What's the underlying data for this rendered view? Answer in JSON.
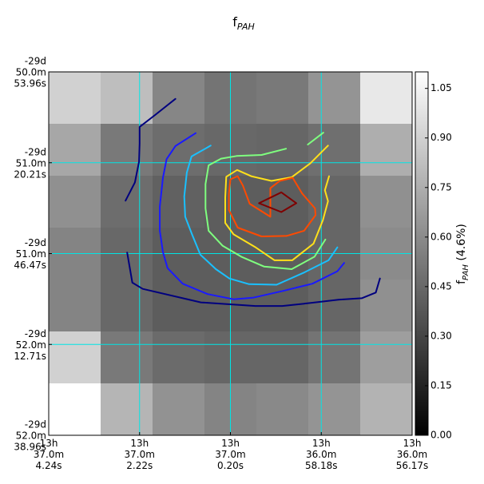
{
  "chart_data": {
    "type": "heatmap",
    "title": "f",
    "title_sub": "PAH",
    "colormap": "gray",
    "vmin": 0.0,
    "vmax": 1.1,
    "grid_rows": 7,
    "grid_cols": 7,
    "values": [
      [
        0.9,
        0.82,
        0.58,
        0.5,
        0.52,
        0.64,
        1.0
      ],
      [
        0.72,
        0.52,
        0.47,
        0.45,
        0.44,
        0.48,
        0.75
      ],
      [
        0.62,
        0.47,
        0.42,
        0.4,
        0.4,
        0.44,
        0.62
      ],
      [
        0.57,
        0.45,
        0.4,
        0.4,
        0.4,
        0.44,
        0.6
      ],
      [
        0.57,
        0.45,
        0.4,
        0.4,
        0.4,
        0.44,
        0.62
      ],
      [
        0.9,
        0.52,
        0.46,
        0.44,
        0.44,
        0.5,
        0.68
      ],
      [
        1.1,
        0.78,
        0.63,
        0.57,
        0.59,
        0.64,
        0.77
      ]
    ],
    "y_ticks": [
      {
        "lines": [
          "-29d",
          "50.0m",
          "53.96s"
        ]
      },
      {
        "lines": [
          "-29d",
          "51.0m",
          "20.21s"
        ]
      },
      {
        "lines": [
          "-29d",
          "51.0m",
          "46.47s"
        ]
      },
      {
        "lines": [
          "-29d",
          "52.0m",
          "12.71s"
        ]
      },
      {
        "lines": [
          "-29d",
          "52.0m",
          "38.96s"
        ]
      }
    ],
    "x_ticks": [
      {
        "lines": [
          "13h",
          "37.0m",
          "4.24s"
        ]
      },
      {
        "lines": [
          "13h",
          "37.0m",
          "2.22s"
        ]
      },
      {
        "lines": [
          "13h",
          "37.0m",
          "0.20s"
        ]
      },
      {
        "lines": [
          "13h",
          "36.0m",
          "58.18s"
        ]
      },
      {
        "lines": [
          "13h",
          "36.0m",
          "56.17s"
        ]
      }
    ],
    "colorbar": {
      "label_prefix": "f",
      "label_sub": "PAH",
      "label_suffix": " (4.6%)",
      "ticks": [
        "0.00",
        "0.15",
        "0.30",
        "0.45",
        "0.60",
        "0.75",
        "0.90",
        "1.05"
      ]
    },
    "grid_color": "#00e5e5",
    "contours": [
      {
        "color": "#00007f",
        "segments": [
          [
            [
              2.44,
              0.52
            ],
            [
              2.05,
              0.83
            ],
            [
              1.75,
              1.06
            ],
            [
              1.75,
              1.38
            ],
            [
              1.74,
              1.73
            ],
            [
              1.66,
              2.13
            ],
            [
              1.48,
              2.48
            ]
          ],
          [
            [
              1.51,
              3.48
            ],
            [
              1.61,
              4.06
            ],
            [
              1.81,
              4.18
            ],
            [
              2.93,
              4.44
            ],
            [
              3.98,
              4.51
            ],
            [
              4.5,
              4.51
            ],
            [
              5.05,
              4.45
            ],
            [
              5.58,
              4.39
            ],
            [
              6.03,
              4.36
            ],
            [
              6.3,
              4.25
            ],
            [
              6.38,
              3.98
            ]
          ]
        ]
      },
      {
        "color": "#1a1aff",
        "segments": [
          [
            [
              2.83,
              1.18
            ],
            [
              2.44,
              1.43
            ],
            [
              2.27,
              1.68
            ],
            [
              2.2,
              2.04
            ],
            [
              2.14,
              2.59
            ],
            [
              2.14,
              3.06
            ],
            [
              2.2,
              3.47
            ],
            [
              2.29,
              3.78
            ],
            [
              2.58,
              4.08
            ],
            [
              3.06,
              4.28
            ],
            [
              3.56,
              4.38
            ],
            [
              3.93,
              4.35
            ],
            [
              4.51,
              4.22
            ],
            [
              5.08,
              4.08
            ],
            [
              5.56,
              3.84
            ],
            [
              5.69,
              3.68
            ]
          ]
        ]
      },
      {
        "color": "#1ac0ff",
        "segments": [
          [
            [
              3.12,
              1.42
            ],
            [
              2.75,
              1.63
            ],
            [
              2.66,
              1.94
            ],
            [
              2.61,
              2.4
            ],
            [
              2.63,
              2.79
            ],
            [
              2.76,
              3.13
            ],
            [
              2.92,
              3.52
            ],
            [
              3.22,
              3.8
            ],
            [
              3.48,
              3.98
            ],
            [
              3.86,
              4.09
            ],
            [
              4.39,
              4.1
            ],
            [
              4.93,
              3.86
            ],
            [
              5.39,
              3.63
            ],
            [
              5.56,
              3.38
            ]
          ]
        ]
      },
      {
        "color": "#7fff7f",
        "segments": [
          [
            [
              4.57,
              1.48
            ],
            [
              4.1,
              1.6
            ],
            [
              3.62,
              1.62
            ],
            [
              3.32,
              1.67
            ],
            [
              3.08,
              1.8
            ],
            [
              3.02,
              2.16
            ],
            [
              3.02,
              2.63
            ],
            [
              3.08,
              3.06
            ],
            [
              3.35,
              3.35
            ],
            [
              3.71,
              3.56
            ],
            [
              4.15,
              3.75
            ],
            [
              4.68,
              3.8
            ],
            [
              5.12,
              3.56
            ],
            [
              5.33,
              3.23
            ]
          ],
          [
            [
              4.99,
              1.4
            ],
            [
              5.29,
              1.17
            ]
          ]
        ]
      },
      {
        "color": "#ffe01a",
        "segments": [
          [
            [
              5.38,
              1.42
            ],
            [
              5.04,
              1.76
            ],
            [
              4.68,
              2.03
            ],
            [
              4.29,
              2.1
            ],
            [
              3.9,
              2.01
            ],
            [
              3.63,
              1.89
            ],
            [
              3.42,
              2.02
            ],
            [
              3.4,
              2.42
            ],
            [
              3.4,
              2.91
            ],
            [
              3.56,
              3.13
            ],
            [
              3.97,
              3.37
            ],
            [
              4.35,
              3.63
            ],
            [
              4.69,
              3.63
            ],
            [
              5.1,
              3.31
            ],
            [
              5.28,
              2.86
            ],
            [
              5.38,
              2.49
            ],
            [
              5.32,
              2.28
            ],
            [
              5.4,
              2.01
            ]
          ]
        ]
      },
      {
        "color": "#ff4a00",
        "segments": [
          [
            [
              4.27,
              2.79
            ],
            [
              3.87,
              2.54
            ],
            [
              3.74,
              2.19
            ],
            [
              3.64,
              2.01
            ],
            [
              3.5,
              2.07
            ],
            [
              3.47,
              2.35
            ],
            [
              3.47,
              2.66
            ],
            [
              3.64,
              3.0
            ],
            [
              4.1,
              3.17
            ],
            [
              4.58,
              3.16
            ],
            [
              4.92,
              3.06
            ],
            [
              5.14,
              2.76
            ],
            [
              5.13,
              2.63
            ],
            [
              4.88,
              2.34
            ],
            [
              4.7,
              2.04
            ],
            [
              4.45,
              2.1
            ],
            [
              4.27,
              2.24
            ],
            [
              4.27,
              2.79
            ]
          ]
        ]
      },
      {
        "color": "#7f0000",
        "segments": [
          [
            [
              4.05,
              2.53
            ],
            [
              4.48,
              2.32
            ],
            [
              4.77,
              2.53
            ],
            [
              4.48,
              2.7
            ],
            [
              4.05,
              2.53
            ]
          ]
        ]
      }
    ]
  }
}
